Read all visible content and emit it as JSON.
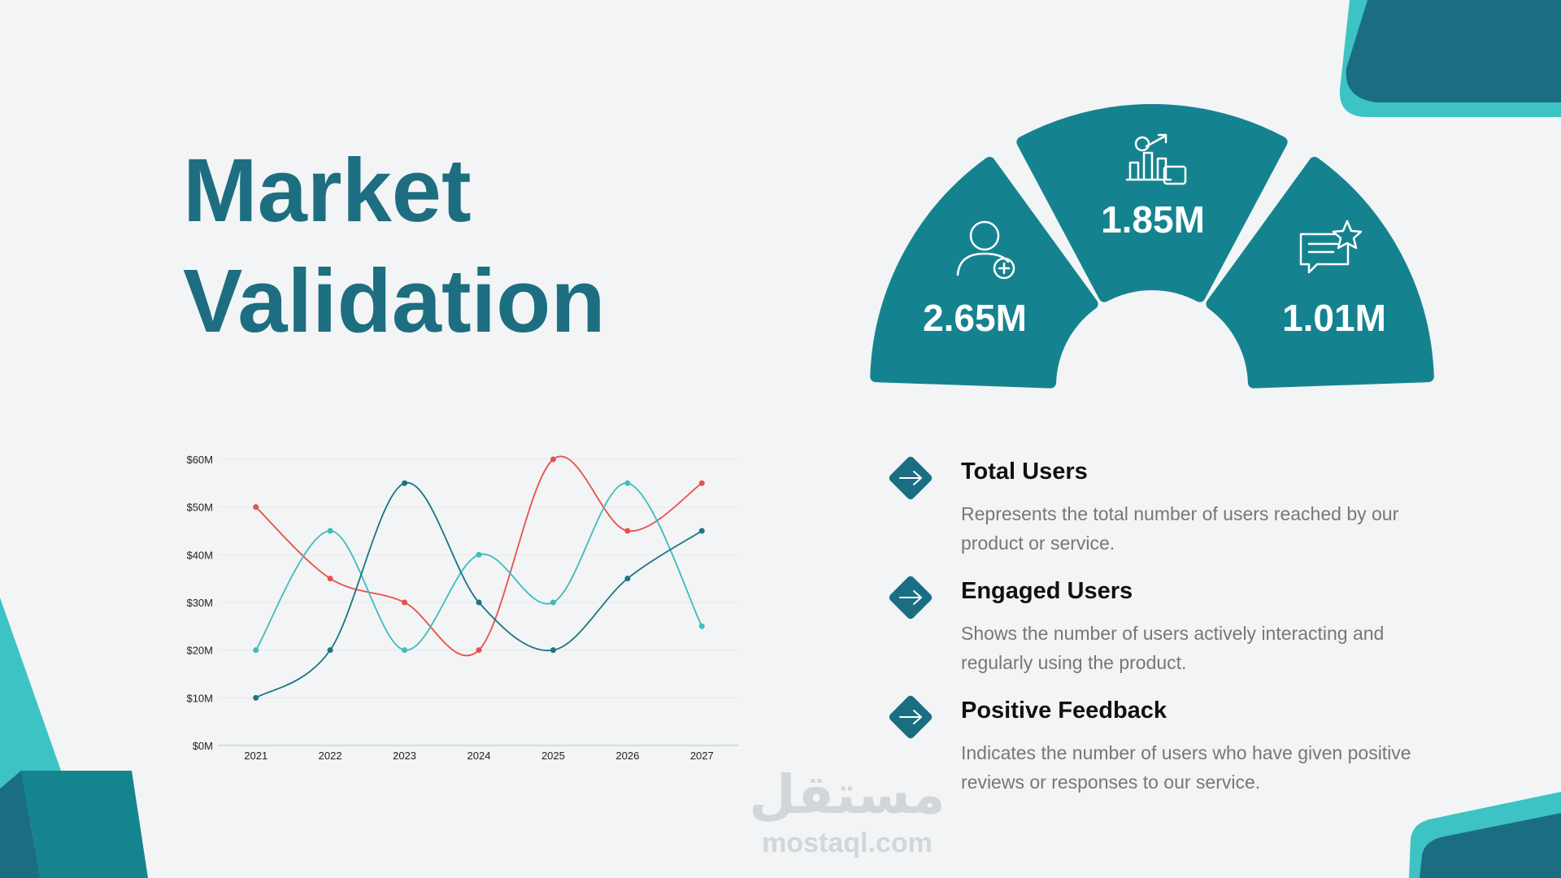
{
  "header": {
    "title_lines": [
      "Market",
      "Validation"
    ]
  },
  "metrics": [
    {
      "value": "2.65M"
    },
    {
      "value": "1.85M"
    },
    {
      "value": "1.01M"
    }
  ],
  "chart_data": {
    "type": "line",
    "categories": [
      "2021",
      "2022",
      "2023",
      "2024",
      "2025",
      "2026",
      "2027"
    ],
    "series": [
      {
        "color": "#e8504d",
        "values": [
          50,
          35,
          30,
          20,
          60,
          45,
          55
        ]
      },
      {
        "color": "#3dbcc0",
        "values": [
          20,
          45,
          20,
          40,
          30,
          55,
          25
        ]
      },
      {
        "color": "#1a7585",
        "values": [
          10,
          20,
          55,
          30,
          20,
          35,
          45
        ]
      }
    ],
    "ylim": [
      0,
      60
    ],
    "yticks": [
      {
        "value": 0,
        "label": "$0M"
      },
      {
        "value": 10,
        "label": "$10M"
      },
      {
        "value": 20,
        "label": "$20M"
      },
      {
        "value": 30,
        "label": "$30M"
      },
      {
        "value": 40,
        "label": "$40M"
      },
      {
        "value": 50,
        "label": "$50M"
      },
      {
        "value": 60,
        "label": "$60M"
      }
    ],
    "grid": true
  },
  "items": [
    {
      "title": "Total Users",
      "description": [
        "Represents the total number of users reached by our",
        "product or service."
      ]
    },
    {
      "title": "Engaged Users",
      "description": [
        "Shows the number of users actively interacting and",
        "regularly using the product."
      ]
    },
    {
      "title": "Positive Feedback",
      "description": [
        "Indicates the number of users who have given positive",
        "reviews or responses to our service."
      ]
    }
  ],
  "watermark": {
    "arabic": "مستقل",
    "latin": "mostaql.com"
  }
}
